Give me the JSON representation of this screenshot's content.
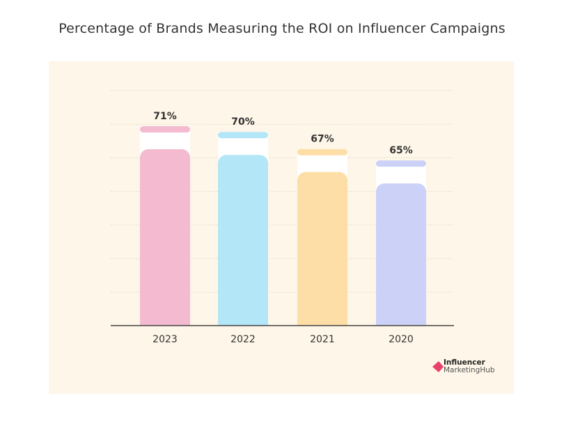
{
  "chart_data": {
    "type": "bar",
    "title": "Percentage of Brands Measuring the ROI on Influencer Campaigns",
    "categories": [
      "2023",
      "2022",
      "2021",
      "2020"
    ],
    "values": [
      71,
      70,
      67,
      65
    ],
    "data_labels": [
      "71%",
      "70%",
      "67%",
      "65%"
    ],
    "colors": [
      "#f4bbd0",
      "#b3e6f7",
      "#fddea6",
      "#ccd1f7"
    ],
    "xlabel": "",
    "ylabel": "",
    "grid": true,
    "legend": "none"
  },
  "background_color": "#fef6e8",
  "logo": {
    "line1": "Influencer",
    "line2": "MarketingHub",
    "accent": "#e8426b"
  }
}
